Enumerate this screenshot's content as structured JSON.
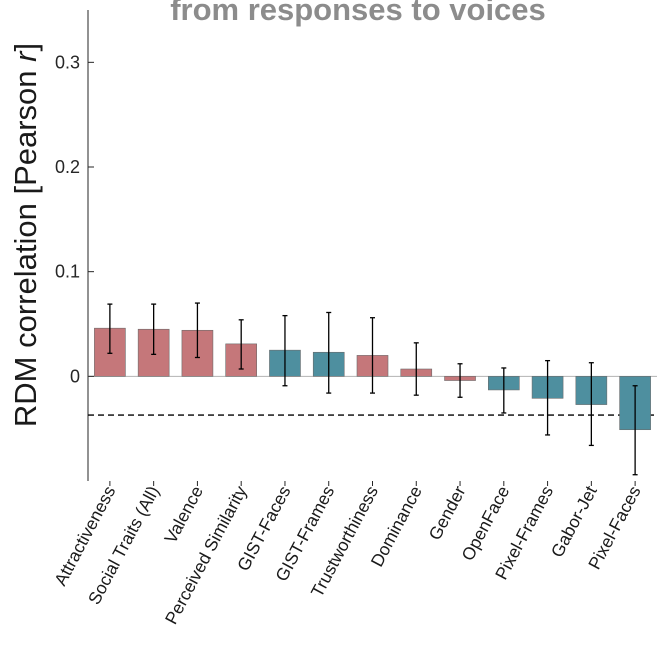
{
  "colors": {
    "social": "#c5777a",
    "lowlevel": "#4e8f9f",
    "errorbar": "#000000",
    "axis": "#262626",
    "title": "#8c8c8c"
  },
  "chart_data": {
    "type": "bar",
    "title": "from responses to voices",
    "ylabel_main": "RDM correlation [Pearson ",
    "ylabel_italic": "r",
    "ylabel_close": "]",
    "ylim": [
      -0.1,
      0.35
    ],
    "yticks": [
      0,
      0.1,
      0.2,
      0.3
    ],
    "ytick_labels": [
      "0",
      "0.1",
      "0.2",
      "0.3"
    ],
    "grid": false,
    "reference_line": -0.037,
    "categories": [
      "Attractiveness",
      "Social Traits (All)",
      "Valence",
      "Perceived Similarity",
      "GIST-Faces",
      "GIST-Frames",
      "Trustworthiness",
      "Dominance",
      "Gender",
      "OpenFace",
      "Pixel-Frames",
      "Gabor-Jet",
      "Pixel-Faces"
    ],
    "values": [
      0.046,
      0.045,
      0.044,
      0.031,
      0.025,
      0.023,
      0.02,
      0.007,
      -0.004,
      -0.013,
      -0.021,
      -0.027,
      -0.051
    ],
    "error_low": [
      0.022,
      0.021,
      0.018,
      0.007,
      -0.009,
      -0.016,
      -0.016,
      -0.018,
      -0.02,
      -0.035,
      -0.056,
      -0.066,
      -0.094
    ],
    "error_high": [
      0.069,
      0.069,
      0.07,
      0.054,
      0.058,
      0.061,
      0.056,
      0.032,
      0.012,
      0.008,
      0.015,
      0.013,
      -0.009
    ],
    "groups": [
      "social",
      "social",
      "social",
      "social",
      "lowlevel",
      "lowlevel",
      "social",
      "social",
      "social",
      "lowlevel",
      "lowlevel",
      "lowlevel",
      "lowlevel"
    ]
  }
}
